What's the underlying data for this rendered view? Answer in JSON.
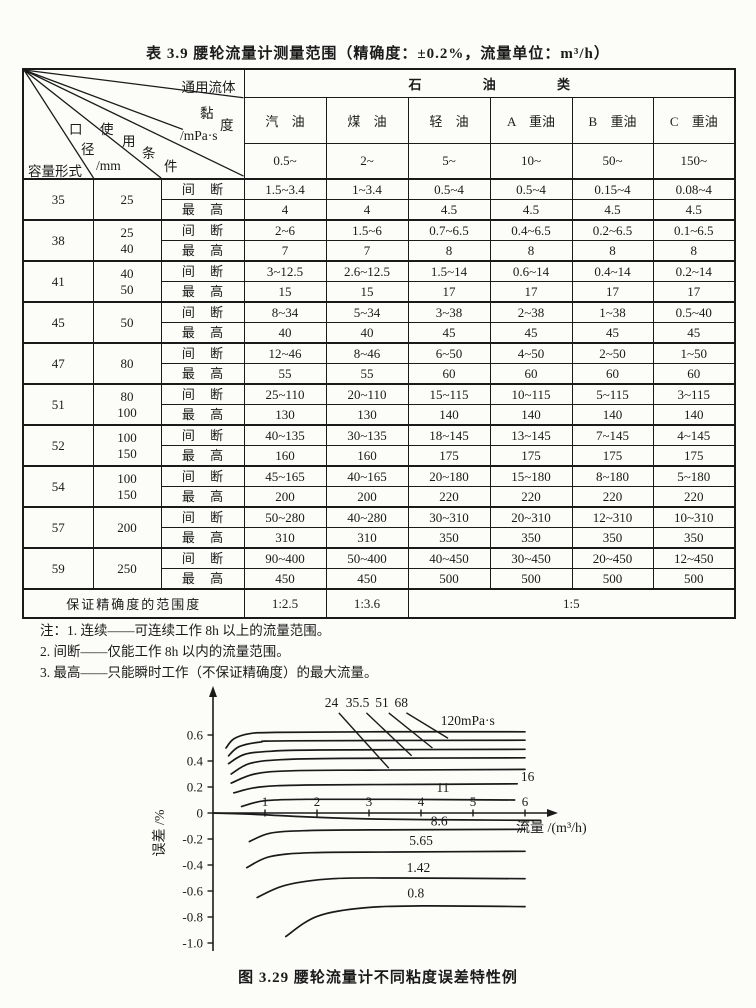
{
  "table": {
    "title": "表 3.9  腰轮流量计测量范围（精确度：±0.2%，流量单位：m³/h）",
    "corner": {
      "top_right": "通用流体",
      "visc_chars": [
        "黏",
        "度"
      ],
      "visc_unit": "/mPa·s",
      "condition_chars": [
        "使",
        "用",
        "条",
        "件"
      ],
      "bore_chars": [
        "口",
        "径"
      ],
      "bore_unit": "/mm",
      "bottom_left": "容量形式"
    },
    "group_header": "石 油 类",
    "columns": [
      "汽 油",
      "煤 油",
      "轻 油",
      "A 重油",
      "B 重油",
      "C 重油"
    ],
    "viscosity_row": [
      "0.5~",
      "2~",
      "5~",
      "10~",
      "50~",
      "150~"
    ],
    "row_label_intermittent": "间 断",
    "row_label_max": "最 高",
    "rows": [
      {
        "model": "35",
        "bore": [
          "25"
        ],
        "intermittent": [
          "1.5~3.4",
          "1~3.4",
          "0.5~4",
          "0.5~4",
          "0.15~4",
          "0.08~4"
        ],
        "max": [
          "4",
          "4",
          "4.5",
          "4.5",
          "4.5",
          "4.5"
        ]
      },
      {
        "model": "38",
        "bore": [
          "25",
          "40"
        ],
        "intermittent": [
          "2~6",
          "1.5~6",
          "0.7~6.5",
          "0.4~6.5",
          "0.2~6.5",
          "0.1~6.5"
        ],
        "max": [
          "7",
          "7",
          "8",
          "8",
          "8",
          "8"
        ]
      },
      {
        "model": "41",
        "bore": [
          "40",
          "50"
        ],
        "intermittent": [
          "3~12.5",
          "2.6~12.5",
          "1.5~14",
          "0.6~14",
          "0.4~14",
          "0.2~14"
        ],
        "max": [
          "15",
          "15",
          "17",
          "17",
          "17",
          "17"
        ]
      },
      {
        "model": "45",
        "bore": [
          "50"
        ],
        "intermittent": [
          "8~34",
          "5~34",
          "3~38",
          "2~38",
          "1~38",
          "0.5~40"
        ],
        "max": [
          "40",
          "40",
          "45",
          "45",
          "45",
          "45"
        ]
      },
      {
        "model": "47",
        "bore": [
          "80"
        ],
        "intermittent": [
          "12~46",
          "8~46",
          "6~50",
          "4~50",
          "2~50",
          "1~50"
        ],
        "max": [
          "55",
          "55",
          "60",
          "60",
          "60",
          "60"
        ]
      },
      {
        "model": "51",
        "bore": [
          "80",
          "100"
        ],
        "intermittent": [
          "25~110",
          "20~110",
          "15~115",
          "10~115",
          "5~115",
          "3~115"
        ],
        "max": [
          "130",
          "130",
          "140",
          "140",
          "140",
          "140"
        ]
      },
      {
        "model": "52",
        "bore": [
          "100",
          "150"
        ],
        "intermittent": [
          "40~135",
          "30~135",
          "18~145",
          "13~145",
          "7~145",
          "4~145"
        ],
        "max": [
          "160",
          "160",
          "175",
          "175",
          "175",
          "175"
        ]
      },
      {
        "model": "54",
        "bore": [
          "100",
          "150"
        ],
        "intermittent": [
          "45~165",
          "40~165",
          "20~180",
          "15~180",
          "8~180",
          "5~180"
        ],
        "max": [
          "200",
          "200",
          "220",
          "220",
          "220",
          "220"
        ]
      },
      {
        "model": "57",
        "bore": [
          "200"
        ],
        "intermittent": [
          "50~280",
          "40~280",
          "30~310",
          "20~310",
          "12~310",
          "10~310"
        ],
        "max": [
          "310",
          "310",
          "350",
          "350",
          "350",
          "350"
        ]
      },
      {
        "model": "59",
        "bore": [
          "250"
        ],
        "intermittent": [
          "90~400",
          "50~400",
          "40~450",
          "30~450",
          "20~450",
          "12~450"
        ],
        "max": [
          "450",
          "450",
          "500",
          "500",
          "500",
          "500"
        ]
      }
    ],
    "footer": {
      "label": "保证精确度的范围度",
      "values": [
        "1:2.5",
        "1:3.6",
        "1:5"
      ]
    }
  },
  "notes": [
    "注：1. 连续——可连续工作 8h 以上的流量范围。",
    "2. 间断——仅能工作 8h 以内的流量范围。",
    "3. 最高——只能瞬时工作（不保证精确度）的最大流量。"
  ],
  "chart_data": {
    "type": "line",
    "title": "图 3.29  腰轮流量计不同粘度误差特性例",
    "xlabel": "流量 /(m³/h)",
    "ylabel": "误差 /%",
    "xlim": [
      0,
      6.5
    ],
    "ylim": [
      -1.05,
      0.9
    ],
    "x_ticks": [
      1,
      2,
      3,
      4,
      5,
      6
    ],
    "y_ticks": [
      0.6,
      0.4,
      0.2,
      0,
      -0.2,
      -0.4,
      -0.6,
      -0.8,
      -1.0
    ],
    "grid": false,
    "legend_note": "curve labels = viscosity in mPa·s",
    "series": [
      {
        "name": "120",
        "label": "120mPa·s",
        "label_pos": [
          4.38,
          0.677
        ],
        "label_anchor": "start",
        "points": [
          [
            0.25,
            0.5
          ],
          [
            0.4,
            0.57
          ],
          [
            0.7,
            0.61
          ],
          [
            1.2,
            0.62
          ],
          [
            3,
            0.625
          ],
          [
            6,
            0.625
          ]
        ]
      },
      {
        "name": "68",
        "label": "68",
        "label_pos": [
          3.62,
          0.815
        ],
        "label_anchor": "middle",
        "leader": [
          3.72,
          0.77,
          4.52,
          0.575
        ],
        "points": [
          [
            0.3,
            0.44
          ],
          [
            0.5,
            0.51
          ],
          [
            0.9,
            0.545
          ],
          [
            1.5,
            0.555
          ],
          [
            6,
            0.56
          ]
        ]
      },
      {
        "name": "51",
        "label": "51",
        "label_pos": [
          3.25,
          0.815
        ],
        "label_anchor": "middle",
        "leader": [
          3.38,
          0.77,
          4.22,
          0.5
        ],
        "points": [
          [
            0.3,
            0.38
          ],
          [
            0.6,
            0.45
          ],
          [
            1.1,
            0.475
          ],
          [
            2,
            0.485
          ],
          [
            6,
            0.49
          ]
        ]
      },
      {
        "name": "35.5",
        "label": "35.5",
        "label_pos": [
          2.78,
          0.815
        ],
        "label_anchor": "middle",
        "leader": [
          2.95,
          0.77,
          3.82,
          0.44
        ],
        "points": [
          [
            0.35,
            0.3
          ],
          [
            0.7,
            0.38
          ],
          [
            1.3,
            0.41
          ],
          [
            2.5,
            0.42
          ],
          [
            6,
            0.425
          ]
        ]
      },
      {
        "name": "24",
        "label": "24",
        "label_pos": [
          2.28,
          0.815
        ],
        "label_anchor": "middle",
        "leader": [
          2.42,
          0.77,
          3.38,
          0.345
        ],
        "points": [
          [
            0.35,
            0.23
          ],
          [
            0.8,
            0.3
          ],
          [
            1.5,
            0.325
          ],
          [
            3,
            0.33
          ],
          [
            6,
            0.335
          ]
        ]
      },
      {
        "name": "16",
        "label": "16",
        "label_pos": [
          5.92,
          0.245
        ],
        "label_anchor": "start",
        "points": [
          [
            0.4,
            0.155
          ],
          [
            0.9,
            0.2
          ],
          [
            1.8,
            0.215
          ],
          [
            4,
            0.22
          ],
          [
            5.85,
            0.225
          ]
        ]
      },
      {
        "name": "11",
        "label": "11",
        "label_pos": [
          4.42,
          0.16
        ],
        "label_anchor": "middle",
        "points": [
          [
            0.55,
            0.05
          ],
          [
            1.0,
            0.095
          ],
          [
            1.8,
            0.105
          ],
          [
            3.5,
            0.105
          ],
          [
            5.8,
            0.1
          ]
        ]
      },
      {
        "name": "zero-reference",
        "label": null,
        "points": [
          [
            0,
            0
          ],
          [
            0.9,
            -0.012
          ],
          [
            1.8,
            -0.03
          ],
          [
            3.2,
            -0.047
          ],
          [
            4.8,
            -0.053
          ],
          [
            6.3,
            -0.057
          ]
        ]
      },
      {
        "name": "8.6",
        "label": "8.6",
        "label_pos": [
          4.35,
          -0.095
        ],
        "label_anchor": "middle",
        "points": [
          [
            0.7,
            -0.22
          ],
          [
            1.1,
            -0.155
          ],
          [
            1.8,
            -0.135
          ],
          [
            3,
            -0.13
          ],
          [
            6,
            -0.125
          ]
        ]
      },
      {
        "name": "5.65",
        "label": "5.65",
        "label_pos": [
          4.0,
          -0.245
        ],
        "label_anchor": "middle",
        "points": [
          [
            0.65,
            -0.42
          ],
          [
            1.1,
            -0.335
          ],
          [
            1.9,
            -0.305
          ],
          [
            3.5,
            -0.3
          ],
          [
            6,
            -0.295
          ]
        ]
      },
      {
        "name": "1.42",
        "label": "1.42",
        "label_pos": [
          3.95,
          -0.455
        ],
        "label_anchor": "middle",
        "points": [
          [
            0.85,
            -0.65
          ],
          [
            1.4,
            -0.555
          ],
          [
            2.3,
            -0.505
          ],
          [
            3.5,
            -0.5
          ],
          [
            6,
            -0.505
          ]
        ]
      },
      {
        "name": "0.8",
        "label": "0.8",
        "label_pos": [
          3.9,
          -0.65
        ],
        "label_anchor": "middle",
        "points": [
          [
            1.4,
            -0.95
          ],
          [
            2.0,
            -0.795
          ],
          [
            2.9,
            -0.73
          ],
          [
            4,
            -0.715
          ],
          [
            6,
            -0.72
          ]
        ]
      }
    ]
  }
}
